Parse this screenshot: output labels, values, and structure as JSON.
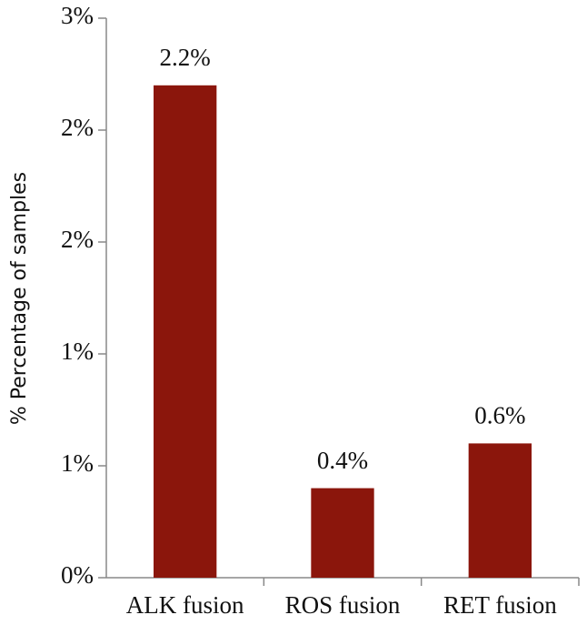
{
  "chart_data": {
    "type": "bar",
    "y_label": "% Percentage of samples",
    "categories": [
      "ALK fusion",
      "ROS fusion",
      "RET fusion"
    ],
    "values": [
      2.2,
      0.4,
      0.6
    ],
    "value_labels": [
      "2.2%",
      "0.4%",
      "0.6%"
    ],
    "color": "#8b160c",
    "ylim": [
      0,
      2.5
    ],
    "yticks": [
      {
        "value": 0,
        "label": "0%"
      },
      {
        "value": 0.5,
        "label": "1%"
      },
      {
        "value": 1,
        "label": "1%"
      },
      {
        "value": 1.5,
        "label": "2%"
      },
      {
        "value": 2,
        "label": "2%"
      },
      {
        "value": 2.5,
        "label": "3%"
      }
    ],
    "grid": false
  }
}
